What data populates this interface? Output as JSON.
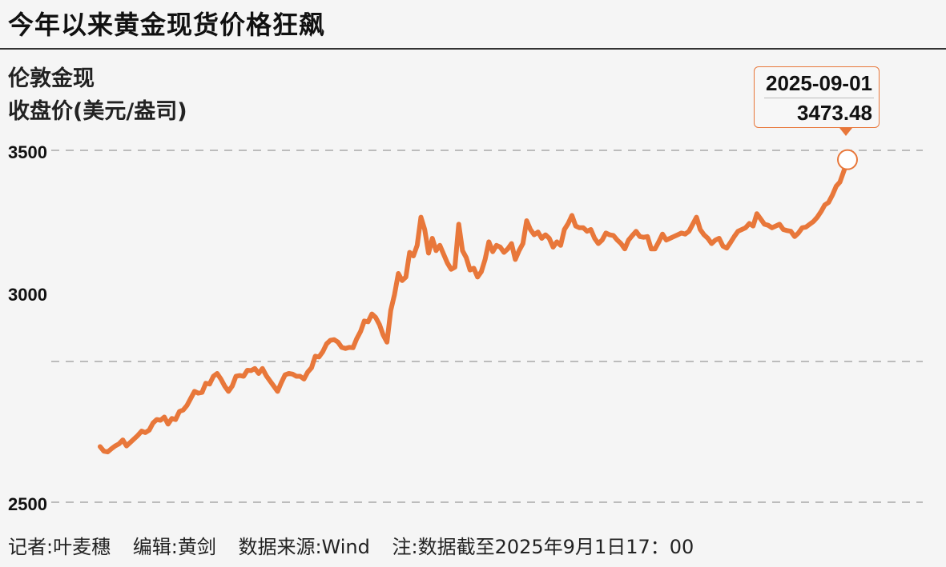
{
  "header": {
    "title": "今年以来黄金现货价格狂飙"
  },
  "unit_label": {
    "line1": "伦敦金现",
    "line2": "收盘价(美元/盎司)"
  },
  "callout": {
    "date": "2025-09-01",
    "value": "3473.48"
  },
  "footer": {
    "reporter": "记者:叶麦穗",
    "editor": "编辑:黄剑",
    "source": "数据来源:Wind",
    "note": "注:数据截至2025年9月1日17：00"
  },
  "colors": {
    "line": "#e8773a",
    "grid": "#aaaaaa",
    "background": "#f5f5f5"
  },
  "chart_data": {
    "type": "line",
    "title": "今年以来黄金现货价格狂飙",
    "ylabel": "伦敦金现 收盘价(美元/盎司)",
    "yticks": [
      2500,
      3000,
      3500
    ],
    "ylim": [
      2500,
      3500
    ],
    "grid": "dashed horizontal at ticks",
    "x_start": "2025-01-02",
    "x_end": "2025-09-01",
    "series": [
      {
        "name": "伦敦金现",
        "values": [
          2658,
          2645,
          2643,
          2652,
          2660,
          2666,
          2677,
          2660,
          2670,
          2680,
          2690,
          2702,
          2698,
          2705,
          2725,
          2735,
          2733,
          2742,
          2722,
          2738,
          2735,
          2758,
          2762,
          2775,
          2795,
          2815,
          2810,
          2812,
          2838,
          2836,
          2858,
          2866,
          2850,
          2830,
          2815,
          2830,
          2858,
          2860,
          2858,
          2875,
          2874,
          2880,
          2866,
          2880,
          2860,
          2845,
          2830,
          2815,
          2840,
          2862,
          2866,
          2864,
          2858,
          2858,
          2850,
          2870,
          2882,
          2915,
          2913,
          2928,
          2950,
          2960,
          2962,
          2955,
          2940,
          2937,
          2940,
          2939,
          2965,
          2985,
          3015,
          3013,
          3035,
          3025,
          3005,
          2975,
          2955,
          3045,
          3090,
          3150,
          3130,
          3140,
          3210,
          3200,
          3230,
          3310,
          3275,
          3208,
          3250,
          3215,
          3230,
          3205,
          3180,
          3162,
          3168,
          3290,
          3215,
          3195,
          3160,
          3165,
          3140,
          3155,
          3190,
          3240,
          3212,
          3230,
          3225,
          3210,
          3220,
          3235,
          3190,
          3215,
          3235,
          3300,
          3275,
          3260,
          3268,
          3250,
          3260,
          3250,
          3225,
          3240,
          3230,
          3275,
          3292,
          3315,
          3285,
          3280,
          3280,
          3270,
          3275,
          3250,
          3235,
          3245,
          3265,
          3260,
          3258,
          3245,
          3235,
          3220,
          3245,
          3258,
          3270,
          3255,
          3253,
          3255,
          3220,
          3220,
          3240,
          3262,
          3245,
          3250,
          3255,
          3260,
          3265,
          3262,
          3270,
          3290,
          3310,
          3275,
          3260,
          3250,
          3235,
          3245,
          3250,
          3228,
          3222,
          3238,
          3255,
          3270,
          3275,
          3280,
          3292,
          3285,
          3320,
          3305,
          3290,
          3287,
          3280,
          3285,
          3290,
          3275,
          3272,
          3270,
          3255,
          3265,
          3280,
          3282,
          3290,
          3298,
          3310,
          3326,
          3345,
          3352,
          3373,
          3398,
          3410,
          3440,
          3473.48
        ]
      }
    ]
  }
}
